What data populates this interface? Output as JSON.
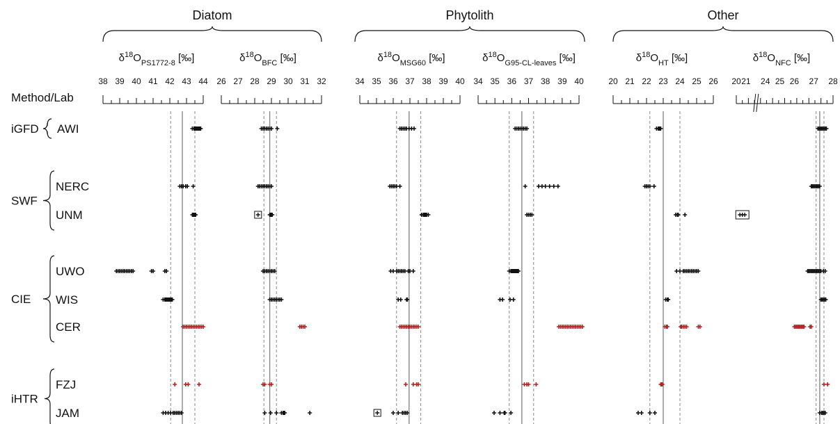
{
  "row_header": "Method/Lab",
  "groups": [
    {
      "title": "Diatom"
    },
    {
      "title": "Phytolith"
    },
    {
      "title": "Other"
    }
  ],
  "methods": [
    {
      "name": "iGFD",
      "labs": [
        "AWI"
      ]
    },
    {
      "name": "SWF",
      "labs": [
        "NERC",
        "UNM"
      ]
    },
    {
      "name": "CIE",
      "labs": [
        "UWO",
        "WIS",
        "CER"
      ]
    },
    {
      "name": "iHTR",
      "labs": [
        "FZJ",
        "JAM"
      ]
    }
  ],
  "colors": {
    "default": "#111111",
    "highlight": "#b22222",
    "axis": "#555555",
    "ref_line": "#888888"
  },
  "chart_data": {
    "type": "scatter",
    "marker": "plus",
    "panels": [
      {
        "id": "PS1772-8",
        "prefix": "δ",
        "sup": "18",
        "main": "O",
        "sub": "PS1772-8",
        "unit": "[‰]",
        "xlim": [
          38,
          44
        ],
        "ticks": [
          38,
          39,
          40,
          41,
          42,
          43,
          44
        ],
        "ref_solid": 42.75,
        "ref_dashed": [
          42.05,
          43.5
        ],
        "series": [
          {
            "lab": "AWI",
            "values": [
              43.35,
              43.45,
              43.5,
              43.55,
              43.6,
              43.65,
              43.7,
              43.75,
              43.8,
              43.85
            ]
          },
          {
            "lab": "NERC",
            "values": [
              42.6,
              42.7,
              42.8,
              42.95,
              43.05,
              43.4
            ]
          },
          {
            "lab": "UNM",
            "values": [
              43.35,
              43.4,
              43.45,
              43.5,
              43.55
            ]
          },
          {
            "lab": "UWO",
            "values": [
              38.8,
              38.9,
              39.0,
              39.1,
              39.2,
              39.3,
              39.4,
              39.5,
              39.6,
              39.7,
              39.8,
              40.9,
              41.0,
              41.7,
              41.8
            ]
          },
          {
            "lab": "WIS",
            "values": [
              41.6,
              41.7,
              41.75,
              41.8,
              41.85,
              41.9,
              41.95,
              42.0,
              42.05,
              42.1,
              42.15
            ]
          },
          {
            "lab": "CER",
            "highlight": true,
            "values": [
              42.8,
              42.9,
              43.0,
              43.1,
              43.2,
              43.3,
              43.4,
              43.5,
              43.6,
              43.7,
              43.8,
              43.9,
              44.0
            ]
          },
          {
            "lab": "FZJ",
            "highlight": true,
            "values": [
              42.3,
              42.95,
              43.1,
              43.75
            ]
          },
          {
            "lab": "JAM",
            "values": [
              41.6,
              41.75,
              41.9,
              42.05,
              42.2,
              42.3,
              42.4,
              42.5,
              42.6,
              42.7
            ]
          }
        ]
      },
      {
        "id": "BFC",
        "prefix": "δ",
        "sup": "18",
        "main": "O",
        "sub": "BFC",
        "unit": "[‰]",
        "xlim": [
          26,
          32
        ],
        "ticks": [
          26,
          27,
          28,
          29,
          30,
          31,
          32
        ],
        "ref_solid": 28.9,
        "ref_dashed": [
          28.55,
          29.3
        ],
        "series": [
          {
            "lab": "AWI",
            "values": [
              28.4,
              28.5,
              28.6,
              28.7,
              28.8,
              28.9,
              29.0,
              29.35
            ]
          },
          {
            "lab": "NERC",
            "values": [
              28.2,
              28.3,
              28.4,
              28.5,
              28.6,
              28.7,
              28.8,
              28.9,
              29.0
            ]
          },
          {
            "lab": "UNM",
            "boxed": [
              28.2
            ],
            "values": [
              28.9,
              28.95,
              29.0,
              29.05
            ]
          },
          {
            "lab": "UWO",
            "values": [
              28.5,
              28.6,
              28.7,
              28.8,
              28.9,
              29.0,
              29.1,
              29.2
            ]
          },
          {
            "lab": "WIS",
            "values": [
              28.9,
              29.0,
              29.1,
              29.2,
              29.3,
              29.4,
              29.5,
              29.6
            ]
          },
          {
            "lab": "CER",
            "highlight": true,
            "values": [
              30.7,
              30.8,
              30.9,
              31.0
            ]
          },
          {
            "lab": "FZJ",
            "highlight": true,
            "values": [
              28.5,
              28.6,
              28.9,
              29.0
            ]
          },
          {
            "lab": "JAM",
            "values": [
              28.6,
              28.95,
              29.3,
              29.6,
              29.7,
              29.75,
              29.8,
              31.3
            ]
          }
        ]
      },
      {
        "id": "MSG60",
        "prefix": "δ",
        "sup": "18",
        "main": "O",
        "sub": "MSG60",
        "unit": "[‰]",
        "xlim": [
          34,
          40
        ],
        "ticks": [
          34,
          35,
          36,
          37,
          38,
          39,
          40
        ],
        "ref_solid": 36.95,
        "ref_dashed": [
          36.2,
          37.65
        ],
        "series": [
          {
            "lab": "AWI",
            "values": [
              36.4,
              36.5,
              36.6,
              36.7,
              36.8,
              36.95,
              37.1,
              37.25
            ]
          },
          {
            "lab": "NERC",
            "values": [
              35.8,
              35.9,
              36.0,
              36.1,
              36.2,
              36.4
            ]
          },
          {
            "lab": "UNM",
            "values": [
              37.7,
              37.8,
              37.85,
              37.9,
              37.95,
              38.0,
              38.1
            ]
          },
          {
            "lab": "UWO",
            "values": [
              35.85,
              36.0,
              36.2,
              36.3,
              36.4,
              36.5,
              36.6,
              36.7,
              36.9,
              37.0,
              37.2
            ]
          },
          {
            "lab": "WIS",
            "values": [
              36.3,
              36.45,
              36.8,
              36.85
            ]
          },
          {
            "lab": "CER",
            "highlight": true,
            "values": [
              36.4,
              36.5,
              36.6,
              36.7,
              36.8,
              36.9,
              37.0,
              37.1,
              37.2,
              37.3,
              37.4,
              37.5
            ]
          },
          {
            "lab": "FZJ",
            "highlight": true,
            "values": [
              36.75,
              37.2,
              37.4,
              37.5
            ]
          },
          {
            "lab": "JAM",
            "boxed": [
              35.05
            ],
            "values": [
              36.0,
              36.3,
              36.55,
              36.65,
              36.75,
              36.85
            ]
          }
        ]
      },
      {
        "id": "G95-CL-leaves",
        "prefix": "δ",
        "sup": "18",
        "main": "O",
        "sub": "G95-CL-leaves",
        "unit": "[‰]",
        "xlim": [
          34,
          40
        ],
        "ticks": [
          34,
          35,
          36,
          37,
          38,
          39,
          40
        ],
        "ref_solid": 36.6,
        "ref_dashed": [
          35.85,
          37.3
        ],
        "series": [
          {
            "lab": "AWI",
            "values": [
              36.2,
              36.3,
              36.4,
              36.5,
              36.6,
              36.7,
              36.8,
              36.9
            ]
          },
          {
            "lab": "NERC",
            "values": [
              36.8,
              37.6,
              37.8,
              38.0,
              38.25,
              38.5,
              38.75
            ]
          },
          {
            "lab": "UNM",
            "values": [
              36.9,
              37.0,
              37.1,
              37.2
            ]
          },
          {
            "lab": "UWO",
            "values": [
              35.85,
              35.95,
              36.0,
              36.05,
              36.1,
              36.15,
              36.2,
              36.25,
              36.3,
              36.35,
              36.4
            ]
          },
          {
            "lab": "WIS",
            "values": [
              35.3,
              35.45,
              35.9,
              36.1
            ]
          },
          {
            "lab": "CER",
            "highlight": true,
            "values": [
              38.8,
              38.9,
              39.0,
              39.1,
              39.2,
              39.3,
              39.4,
              39.5,
              39.6,
              39.7,
              39.8,
              39.9,
              40.0,
              40.1,
              40.2
            ]
          },
          {
            "lab": "FZJ",
            "highlight": true,
            "values": [
              36.75,
              36.9,
              37.0,
              37.45
            ]
          },
          {
            "lab": "JAM",
            "values": [
              34.95,
              35.3,
              35.55,
              35.6,
              35.95
            ]
          }
        ]
      },
      {
        "id": "HT",
        "prefix": "δ",
        "sup": "18",
        "main": "O",
        "sub": "HT",
        "unit": "[‰]",
        "xlim": [
          20,
          26
        ],
        "ticks": [
          20,
          21,
          22,
          23,
          24,
          25,
          26
        ],
        "ref_solid": 23.0,
        "ref_dashed": [
          22.2,
          24.0
        ],
        "series": [
          {
            "lab": "AWI",
            "values": [
              22.6,
              22.7,
              22.75,
              22.8,
              22.85
            ]
          },
          {
            "lab": "NERC",
            "values": [
              21.9,
              22.0,
              22.1,
              22.2,
              22.45
            ]
          },
          {
            "lab": "UNM",
            "values": [
              23.75,
              23.85,
              23.9,
              24.3
            ]
          },
          {
            "lab": "UWO",
            "values": [
              23.8,
              24.0,
              24.2,
              24.3,
              24.4,
              24.5,
              24.6,
              24.7,
              24.8,
              24.9,
              25.0,
              25.1
            ]
          },
          {
            "lab": "WIS",
            "values": [
              23.15,
              23.25,
              23.3
            ]
          },
          {
            "lab": "CER",
            "highlight": true,
            "values": [
              23.1,
              23.2,
              23.25,
              24.05,
              24.1,
              24.2,
              24.3,
              24.4,
              25.1,
              25.2
            ]
          },
          {
            "lab": "FZJ",
            "highlight": true,
            "values": [
              22.85,
              22.9,
              22.95
            ]
          },
          {
            "lab": "JAM",
            "values": [
              21.5,
              21.7,
              22.2,
              22.5
            ]
          }
        ]
      },
      {
        "id": "NFC",
        "prefix": "δ",
        "sup": "18",
        "main": "O",
        "sub": "NFC",
        "unit": "[‰]",
        "xlim": [
          20,
          28
        ],
        "ticks": [
          20,
          21,
          22,
          23,
          24,
          25,
          26,
          27,
          28
        ],
        "tick_labels": [
          "20",
          "21",
          "24",
          "25",
          "26",
          "27",
          "28"
        ],
        "axis_break": true,
        "ref_solid": 26.9,
        "ref_dashed": [
          26.6,
          27.25
        ],
        "series": [
          {
            "lab": "AWI",
            "values": [
              26.75,
              26.85,
              26.95,
              27.05,
              27.15,
              27.25,
              27.35,
              27.45
            ]
          },
          {
            "lab": "NERC",
            "values": [
              26.2,
              26.3,
              26.4,
              26.5,
              26.6,
              26.7,
              26.8,
              26.9
            ]
          },
          {
            "lab": "UNM",
            "boxed_group": [
              20.3,
              20.5,
              20.7
            ],
            "values": []
          },
          {
            "lab": "UWO",
            "values": [
              25.9,
              26.0,
              26.1,
              26.2,
              26.3,
              26.4,
              26.5,
              26.6,
              26.7,
              26.8,
              26.9,
              27.0,
              27.2,
              27.35
            ]
          },
          {
            "lab": "WIS",
            "values": [
              27.0,
              27.1,
              27.2,
              27.3,
              27.4
            ]
          },
          {
            "lab": "CER",
            "highlight": true,
            "values": [
              24.8,
              24.9,
              25.0,
              25.1,
              25.2,
              25.3,
              25.4,
              25.5,
              25.6,
              26.1,
              26.2
            ]
          },
          {
            "lab": "FZJ",
            "highlight": true,
            "values": [
              27.25,
              27.55
            ]
          },
          {
            "lab": "JAM",
            "values": [
              26.9,
              27.05,
              27.15,
              27.25,
              27.35
            ]
          }
        ]
      }
    ]
  }
}
